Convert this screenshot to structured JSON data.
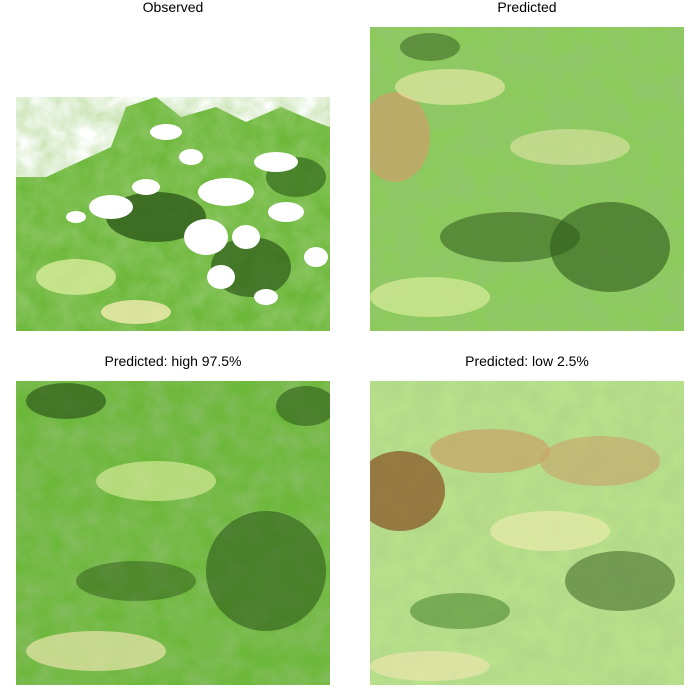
{
  "figure": {
    "panels": [
      {
        "id": "observed",
        "title": "Observed"
      },
      {
        "id": "predicted",
        "title": "Predicted"
      },
      {
        "id": "predicted_high",
        "title": "Predicted: high 97.5%"
      },
      {
        "id": "predicted_low",
        "title": "Predicted: low 2.5%"
      }
    ],
    "colors": {
      "dark_green": "#2f5a1a",
      "mid_green": "#5aa62e",
      "light_green": "#9bd46a",
      "pale_yellow": "#f2ecb0",
      "tan": "#c9a26a",
      "brown": "#8a5a2a",
      "missing": "#ffffff"
    }
  }
}
